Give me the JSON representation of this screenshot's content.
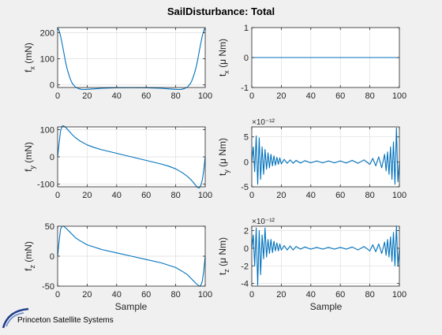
{
  "figure": {
    "title": "SailDisturbance: Total",
    "xlabel": "Sample",
    "logo_text": "Princeton Satellite Systems",
    "line_color": "#0072BD",
    "axes_color": "#262626",
    "grid_color": "#dedede"
  },
  "chart_data": [
    {
      "type": "line",
      "name": "fx",
      "ylabel_main": "f",
      "ylabel_sub": "x",
      "ylabel_unit": " (mN)",
      "xlim": [
        0,
        100
      ],
      "ylim": [
        -10,
        220
      ],
      "xticks": [
        0,
        20,
        40,
        60,
        80,
        100
      ],
      "yticks": [
        0,
        100,
        200
      ],
      "exponent": "",
      "x": [
        0,
        1,
        2,
        3,
        4,
        5,
        6,
        7,
        8,
        9,
        10,
        12,
        14,
        16,
        18,
        20,
        25,
        30,
        40,
        50,
        60,
        70,
        75,
        80,
        82,
        84,
        86,
        88,
        90,
        91,
        92,
        93,
        94,
        95,
        96,
        97,
        98,
        99,
        100
      ],
      "y": [
        220,
        208,
        188,
        160,
        130,
        100,
        72,
        50,
        32,
        17,
        5,
        -8,
        -14,
        -17,
        -17.5,
        -17,
        -15,
        -13,
        -11,
        -10.5,
        -11,
        -13,
        -15,
        -17,
        -17.5,
        -17,
        -14,
        -8,
        5,
        17,
        32,
        50,
        72,
        100,
        130,
        160,
        188,
        208,
        220
      ]
    },
    {
      "type": "line",
      "name": "tx",
      "ylabel_main": "t",
      "ylabel_sub": "x",
      "ylabel_unit": " (μ Nm)",
      "xlim": [
        0,
        100
      ],
      "ylim": [
        -1,
        1
      ],
      "xticks": [
        0,
        20,
        40,
        60,
        80,
        100
      ],
      "yticks": [
        -1,
        0,
        1
      ],
      "exponent": "",
      "x": [
        0,
        100
      ],
      "y": [
        0,
        0
      ]
    },
    {
      "type": "line",
      "name": "fy",
      "ylabel_main": "f",
      "ylabel_sub": "y",
      "ylabel_unit": " (mN)",
      "xlim": [
        0,
        100
      ],
      "ylim": [
        -110,
        110
      ],
      "xticks": [
        0,
        20,
        40,
        60,
        80,
        100
      ],
      "yticks": [
        -100,
        0,
        100
      ],
      "exponent": "",
      "x": [
        0,
        1,
        2,
        3,
        4,
        5,
        6,
        8,
        10,
        12,
        15,
        20,
        25,
        30,
        40,
        50,
        60,
        70,
        75,
        80,
        85,
        88,
        90,
        92,
        94,
        95,
        96,
        97,
        98,
        99,
        100
      ],
      "y": [
        0,
        50,
        95,
        113,
        114,
        110,
        105,
        93,
        81,
        71,
        59,
        44,
        34,
        26,
        13,
        0,
        -13,
        -26,
        -34,
        -44,
        -60,
        -72,
        -82,
        -94,
        -108,
        -113,
        -114,
        -105,
        -85,
        -50,
        0
      ]
    },
    {
      "type": "line",
      "name": "ty",
      "ylabel_main": "t",
      "ylabel_sub": "y",
      "ylabel_unit": " (μ Nm)",
      "xlim": [
        0,
        100
      ],
      "ylim": [
        -5,
        7
      ],
      "xticks": [
        0,
        20,
        40,
        60,
        80,
        100
      ],
      "yticks": [
        -5,
        0,
        5
      ],
      "exponent": "×10⁻¹²",
      "x": [
        0,
        1,
        2,
        3,
        4,
        5,
        6,
        7,
        8,
        9,
        10,
        11,
        12,
        13,
        14,
        15,
        16,
        17,
        18,
        19,
        20,
        22,
        24,
        26,
        28,
        30,
        33,
        36,
        40,
        44,
        48,
        52,
        56,
        60,
        64,
        68,
        72,
        76,
        80,
        82,
        84,
        86,
        88,
        90,
        91,
        92,
        93,
        94,
        95,
        96,
        97,
        98,
        99,
        100
      ],
      "y": [
        0,
        3,
        -2,
        5.2,
        -4.5,
        4.8,
        -3.5,
        3,
        -2.5,
        2.5,
        -1.5,
        1.8,
        -1.2,
        1.5,
        -0.8,
        1.2,
        -0.7,
        0.9,
        -0.5,
        0.8,
        -0.4,
        0.5,
        -0.3,
        0.4,
        -0.3,
        0.3,
        -0.25,
        0.25,
        -0.2,
        0.2,
        -0.2,
        0.2,
        -0.2,
        0.2,
        -0.25,
        0.3,
        -0.3,
        0.4,
        -0.5,
        0.7,
        -0.8,
        1,
        -1.2,
        1.5,
        -1.8,
        2,
        -2.5,
        3,
        -3.5,
        4,
        -4.5,
        6.8,
        -4,
        0
      ]
    },
    {
      "type": "line",
      "name": "fz",
      "ylabel_main": "f",
      "ylabel_sub": "z",
      "ylabel_unit": " (mN)",
      "xlim": [
        0,
        100
      ],
      "ylim": [
        -50,
        50
      ],
      "xticks": [
        0,
        20,
        40,
        60,
        80,
        100
      ],
      "yticks": [
        -50,
        0,
        50
      ],
      "exponent": "",
      "x": [
        0,
        1,
        2,
        3,
        4,
        5,
        6,
        8,
        10,
        12,
        15,
        20,
        25,
        30,
        40,
        50,
        60,
        70,
        75,
        80,
        85,
        88,
        90,
        92,
        94,
        95,
        96,
        97,
        98,
        99,
        100
      ],
      "y": [
        0,
        25,
        45,
        50,
        50,
        48,
        46,
        41,
        36,
        31,
        26,
        19,
        15,
        11,
        5.5,
        0,
        -5.5,
        -11,
        -15,
        -19,
        -26,
        -31,
        -36,
        -41,
        -46,
        -48,
        -50,
        -49,
        -42,
        -25,
        0
      ]
    },
    {
      "type": "line",
      "name": "tz",
      "ylabel_main": "t",
      "ylabel_sub": "z",
      "ylabel_unit": " (μ Nm)",
      "xlim": [
        0,
        100
      ],
      "ylim": [
        -4.3,
        2.5
      ],
      "xticks": [
        0,
        20,
        40,
        60,
        80,
        100
      ],
      "yticks": [
        -4,
        -2,
        0,
        2
      ],
      "exponent": "×10⁻¹²",
      "x": [
        0,
        1,
        2,
        3,
        4,
        5,
        6,
        7,
        8,
        9,
        10,
        11,
        12,
        13,
        14,
        15,
        16,
        17,
        18,
        19,
        20,
        22,
        24,
        26,
        28,
        30,
        33,
        36,
        40,
        44,
        48,
        52,
        56,
        60,
        64,
        68,
        72,
        76,
        80,
        82,
        84,
        86,
        88,
        90,
        91,
        92,
        93,
        94,
        95,
        96,
        97,
        98,
        99,
        100
      ],
      "y": [
        0,
        1.5,
        -2,
        2.3,
        -4.2,
        2,
        -3,
        1.5,
        -1.2,
        2.3,
        -1,
        1,
        -0.6,
        1,
        -0.5,
        0.8,
        -0.3,
        0.6,
        -0.3,
        0.5,
        -0.2,
        0.3,
        -0.2,
        0.25,
        -0.2,
        0.2,
        -0.1,
        0.15,
        -0.1,
        0.1,
        -0.1,
        0.1,
        -0.1,
        0.1,
        -0.1,
        0.15,
        -0.2,
        0.2,
        -0.3,
        0.4,
        -0.4,
        0.5,
        -0.6,
        0.7,
        -0.8,
        1,
        -1,
        1.3,
        -1.5,
        1.8,
        -2,
        2.5,
        -2,
        0
      ]
    }
  ]
}
